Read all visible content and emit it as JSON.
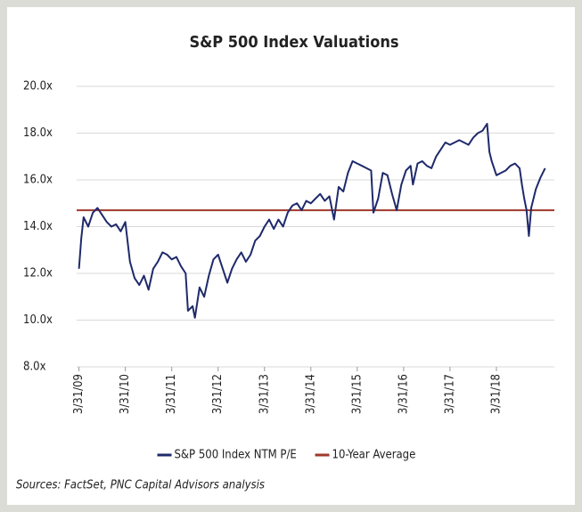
{
  "chart_data": {
    "type": "line",
    "title": "S&P 500 Index Valuations",
    "source": "Sources: FactSet, PNC Capital Advisors analysis",
    "xlim": [
      2009.2,
      2019.5
    ],
    "xticks": [
      {
        "value": 2009.25,
        "label": "3/31/09"
      },
      {
        "value": 2010.25,
        "label": "3/31/10"
      },
      {
        "value": 2011.25,
        "label": "3/31/11"
      },
      {
        "value": 2012.25,
        "label": "3/31/12"
      },
      {
        "value": 2013.25,
        "label": "3/31/13"
      },
      {
        "value": 2014.25,
        "label": "3/31/14"
      },
      {
        "value": 2015.25,
        "label": "3/31/15"
      },
      {
        "value": 2016.25,
        "label": "3/31/16"
      },
      {
        "value": 2017.25,
        "label": "3/31/17"
      },
      {
        "value": 2018.25,
        "label": "3/31/18"
      }
    ],
    "ylim": [
      8,
      20
    ],
    "yticks": [
      {
        "value": 8,
        "label": "8.0x"
      },
      {
        "value": 10,
        "label": "10.0x"
      },
      {
        "value": 12,
        "label": "12.0x"
      },
      {
        "value": 14,
        "label": "14.0x"
      },
      {
        "value": 16,
        "label": "16.0x"
      },
      {
        "value": 18,
        "label": "18.0x"
      },
      {
        "value": 20,
        "label": "20.0x"
      }
    ],
    "grid": true,
    "legend": "bottom",
    "series": [
      {
        "name": "S&P 500 Index NTM P/E",
        "color": "#1f2a6b",
        "x": [
          2009.25,
          2009.3,
          2009.35,
          2009.45,
          2009.55,
          2009.65,
          2009.75,
          2009.85,
          2009.95,
          2010.05,
          2010.15,
          2010.25,
          2010.35,
          2010.45,
          2010.55,
          2010.65,
          2010.75,
          2010.85,
          2010.95,
          2011.05,
          2011.15,
          2011.25,
          2011.35,
          2011.45,
          2011.55,
          2011.6,
          2011.7,
          2011.75,
          2011.85,
          2011.95,
          2012.05,
          2012.15,
          2012.25,
          2012.35,
          2012.45,
          2012.55,
          2012.65,
          2012.75,
          2012.85,
          2012.95,
          2013.05,
          2013.15,
          2013.25,
          2013.35,
          2013.45,
          2013.55,
          2013.65,
          2013.75,
          2013.85,
          2013.95,
          2014.05,
          2014.15,
          2014.25,
          2014.35,
          2014.45,
          2014.55,
          2014.65,
          2014.75,
          2014.85,
          2014.95,
          2015.05,
          2015.15,
          2015.25,
          2015.35,
          2015.45,
          2015.55,
          2015.6,
          2015.7,
          2015.8,
          2015.9,
          2016.0,
          2016.1,
          2016.2,
          2016.3,
          2016.4,
          2016.45,
          2016.55,
          2016.65,
          2016.75,
          2016.85,
          2016.95,
          2017.05,
          2017.15,
          2017.25,
          2017.35,
          2017.45,
          2017.55,
          2017.65,
          2017.75,
          2017.85,
          2017.95,
          2018.05,
          2018.1,
          2018.15,
          2018.25,
          2018.35,
          2018.45,
          2018.55,
          2018.65,
          2018.75,
          2018.8,
          2018.85,
          2018.9,
          2018.95,
          2019.0,
          2019.1,
          2019.2,
          2019.3
        ],
        "values": [
          12.2,
          13.5,
          14.4,
          14.0,
          14.6,
          14.8,
          14.5,
          14.2,
          14.0,
          14.1,
          13.8,
          14.2,
          12.5,
          11.8,
          11.5,
          11.9,
          11.3,
          12.2,
          12.5,
          12.9,
          12.8,
          12.6,
          12.7,
          12.3,
          12.0,
          10.4,
          10.6,
          10.1,
          11.4,
          11.0,
          11.9,
          12.6,
          12.8,
          12.2,
          11.6,
          12.2,
          12.6,
          12.9,
          12.5,
          12.8,
          13.4,
          13.6,
          14.0,
          14.3,
          13.9,
          14.3,
          14.0,
          14.6,
          14.9,
          15.0,
          14.7,
          15.1,
          15.0,
          15.2,
          15.4,
          15.1,
          15.3,
          14.3,
          15.7,
          15.5,
          16.3,
          16.8,
          16.7,
          16.6,
          16.5,
          16.4,
          14.6,
          15.2,
          16.3,
          16.2,
          15.4,
          14.7,
          15.8,
          16.4,
          16.6,
          15.8,
          16.7,
          16.8,
          16.6,
          16.5,
          17.0,
          17.3,
          17.6,
          17.5,
          17.6,
          17.7,
          17.6,
          17.5,
          17.8,
          18.0,
          18.1,
          18.4,
          17.2,
          16.8,
          16.2,
          16.3,
          16.4,
          16.6,
          16.7,
          16.5,
          15.8,
          15.2,
          14.7,
          13.6,
          14.8,
          15.6,
          16.1,
          16.5
        ]
      },
      {
        "name": "10-Year Average",
        "color": "#a0392b",
        "x": [
          2009.2,
          2019.5
        ],
        "values": [
          14.7,
          14.7
        ]
      }
    ]
  }
}
